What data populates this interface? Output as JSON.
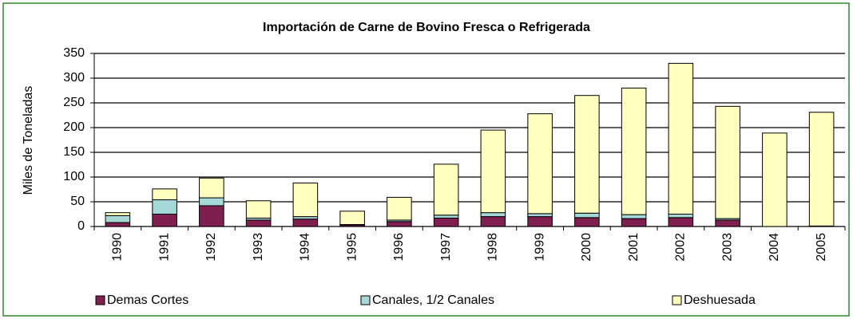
{
  "chart_data": {
    "type": "stacked_bar",
    "title": "Importación de Carne de Bovino Fresca o Refrigerada",
    "y_label": "Miles de Toneladas",
    "categories": [
      "1990",
      "1991",
      "1992",
      "1993",
      "1994",
      "1995",
      "1996",
      "1997",
      "1998",
      "1999",
      "2000",
      "2001",
      "2002",
      "2003",
      "2004",
      "2005"
    ],
    "series": [
      {
        "name": "Demas Cortes",
        "color": "#7f1f4f",
        "values": [
          8,
          25,
          42,
          13,
          15,
          3,
          10,
          17,
          20,
          20,
          18,
          16,
          18,
          13,
          0,
          1
        ]
      },
      {
        "name": "Canales, 1/2 Canales",
        "color": "#a6d8d8",
        "values": [
          14,
          29,
          16,
          4,
          5,
          1,
          3,
          6,
          8,
          6,
          9,
          8,
          7,
          3,
          0,
          0
        ]
      },
      {
        "name": "Deshuesada",
        "color": "#ffffc0",
        "values": [
          6,
          22,
          40,
          35,
          68,
          27,
          46,
          103,
          167,
          202,
          238,
          256,
          305,
          227,
          189,
          230
        ]
      }
    ],
    "ylim": [
      0,
      350
    ],
    "yticks": [
      0,
      50,
      100,
      150,
      200,
      250,
      300,
      350
    ],
    "grid": true,
    "legend": "bottom"
  }
}
